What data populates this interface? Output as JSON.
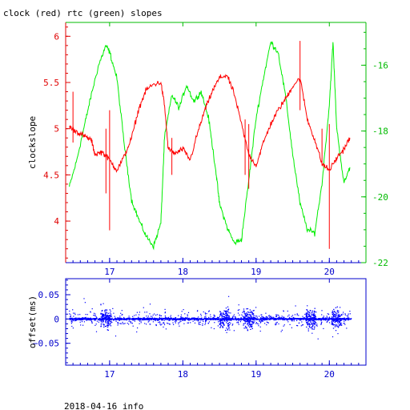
{
  "title": "clock (red) rtc (green) slopes",
  "footer": "2018-04-16 info",
  "chart_data": [
    {
      "type": "line",
      "title": "clock (red) rtc (green) slopes",
      "xlim": [
        16.4,
        20.5
      ],
      "x_ticks": [
        "17",
        "18",
        "19",
        "20"
      ],
      "ylabel": "clockslope",
      "ylim": [
        3.55,
        6.15
      ],
      "y_ticks": [
        "4",
        "4.5",
        "5",
        "5.5",
        "6"
      ],
      "y2lim": [
        -22,
        -14.7
      ],
      "y2_ticks": [
        "-16",
        "-18",
        "-20",
        "-22"
      ],
      "grid": false,
      "colors": {
        "clock": "#ff0000",
        "rtc": "#00ee00",
        "axis_left": "#e00000",
        "axis_right": "#00bb00"
      },
      "series": [
        {
          "axis": "left",
          "color": "#ff0000",
          "x": [
            16.45,
            16.55,
            16.65,
            16.75,
            16.8,
            16.9,
            17.0,
            17.1,
            17.2,
            17.3,
            17.4,
            17.5,
            17.6,
            17.7,
            17.75,
            17.8,
            17.9,
            18.0,
            18.1,
            18.2,
            18.3,
            18.4,
            18.5,
            18.6,
            18.7,
            18.8,
            18.9,
            19.0,
            19.1,
            19.2,
            19.3,
            19.4,
            19.5,
            19.6,
            19.7,
            19.8,
            19.9,
            20.0,
            20.1,
            20.2,
            20.28
          ],
          "y": [
            5.02,
            4.97,
            4.92,
            4.88,
            4.72,
            4.75,
            4.66,
            4.55,
            4.7,
            4.9,
            5.22,
            5.42,
            5.48,
            5.5,
            5.25,
            4.78,
            4.73,
            4.78,
            4.66,
            4.95,
            5.2,
            5.4,
            5.55,
            5.58,
            5.38,
            5.05,
            4.72,
            4.6,
            4.85,
            5.05,
            5.2,
            5.32,
            5.46,
            5.55,
            5.1,
            4.88,
            4.62,
            4.55,
            4.68,
            4.78,
            4.9
          ]
        },
        {
          "axis": "right",
          "color": "#00ee00",
          "x": [
            16.45,
            16.55,
            16.65,
            16.75,
            16.85,
            16.95,
            17.0,
            17.1,
            17.2,
            17.3,
            17.4,
            17.5,
            17.6,
            17.7,
            17.75,
            17.85,
            17.95,
            18.05,
            18.15,
            18.25,
            18.35,
            18.45,
            18.5,
            18.6,
            18.7,
            18.8,
            18.9,
            19.0,
            19.1,
            19.2,
            19.3,
            19.4,
            19.5,
            19.6,
            19.7,
            19.8,
            19.9,
            20.0,
            20.05,
            20.1,
            20.2,
            20.28
          ],
          "y": [
            -19.7,
            -18.9,
            -17.9,
            -16.9,
            -16.0,
            -15.4,
            -15.6,
            -16.4,
            -18.4,
            -20.1,
            -20.7,
            -21.2,
            -21.5,
            -20.8,
            -18.2,
            -16.9,
            -17.3,
            -16.6,
            -17.1,
            -16.8,
            -17.6,
            -19.2,
            -20.2,
            -20.9,
            -21.4,
            -21.3,
            -19.5,
            -17.6,
            -16.4,
            -15.3,
            -15.6,
            -16.9,
            -18.7,
            -20.2,
            -21.0,
            -21.1,
            -19.6,
            -17.2,
            -15.3,
            -17.9,
            -19.6,
            -19.1
          ]
        }
      ]
    },
    {
      "type": "scatter",
      "xlim": [
        16.4,
        20.5
      ],
      "x_ticks": [
        "17",
        "18",
        "19",
        "20"
      ],
      "ylabel": "offset(ms)",
      "ylim": [
        -0.095,
        0.083
      ],
      "y_ticks": [
        "0.05",
        "0",
        "−0.05"
      ],
      "grid": false,
      "colors": {
        "points": "#0000ff",
        "axis": "#0000cc"
      },
      "series": [
        {
          "color": "#0000ff",
          "x_range": [
            16.45,
            20.3
          ],
          "y_center": 0,
          "typical_spread": 0.003,
          "outlier_spread": 0.06,
          "dense_bursts_x": [
            16.95,
            18.57,
            18.9,
            19.75,
            20.1
          ]
        }
      ]
    }
  ]
}
